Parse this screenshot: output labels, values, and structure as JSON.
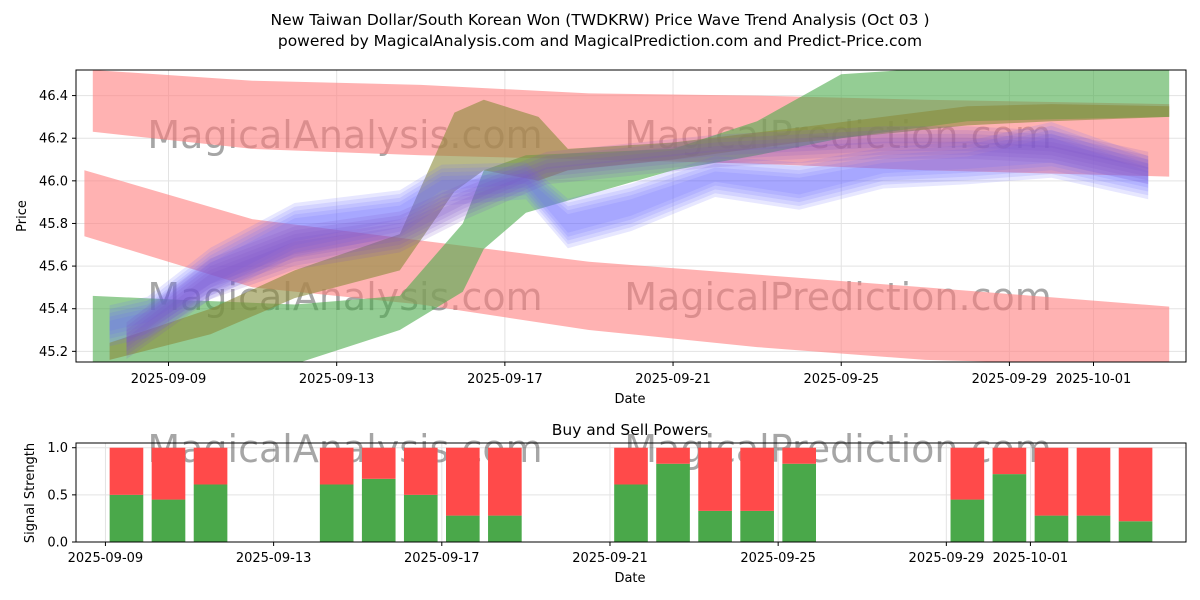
{
  "title_line1": "New Taiwan Dollar/South Korean Won (TWDKRW) Price Wave Trend Analysis (Oct 03 )",
  "title_line2": "powered by MagicalAnalysis.com and MagicalPrediction.com and Predict-Price.com",
  "watermarks": [
    "MagicalAnalysis.com",
    "MagicalPrediction.com"
  ],
  "colors": {
    "red_band": "#ff7f7f",
    "green_band": "#4cab4c",
    "blue_band": "#6a6aff",
    "buy": "#4aa84a",
    "sell": "#ff4a4a"
  },
  "chart_data": [
    {
      "type": "area",
      "name": "price-wave-chart",
      "xlabel": "Date",
      "ylabel": "Price",
      "ylim": [
        45.15,
        46.52
      ],
      "xlim": [
        -1.2,
        25.2
      ],
      "grid": true,
      "x_axis_start_date": "2025-09-08",
      "x_tick_positions": [
        1,
        5,
        9,
        13,
        17,
        21,
        23
      ],
      "x_tick_labels": [
        "2025-09-09",
        "2025-09-13",
        "2025-09-17",
        "2025-09-21",
        "2025-09-25",
        "2025-09-29",
        "2025-10-01"
      ],
      "y_ticks": [
        45.2,
        45.4,
        45.6,
        45.8,
        46.0,
        46.2,
        46.4
      ],
      "bands": [
        {
          "color": "red",
          "x": [
            -0.8,
            3,
            7,
            11,
            15,
            19,
            24.8
          ],
          "upper": [
            46.52,
            46.47,
            46.45,
            46.41,
            46.4,
            46.38,
            46.36
          ],
          "lower": [
            46.23,
            46.15,
            46.12,
            46.1,
            46.08,
            46.05,
            46.02
          ]
        },
        {
          "color": "red",
          "x": [
            -1.0,
            3,
            7,
            11,
            15,
            19,
            24.8
          ],
          "upper": [
            46.05,
            45.82,
            45.72,
            45.62,
            45.56,
            45.5,
            45.41
          ],
          "lower": [
            45.74,
            45.5,
            45.42,
            45.3,
            45.22,
            45.16,
            45.13
          ]
        },
        {
          "color": "green",
          "x": [
            -0.8,
            1.5,
            4,
            6.5,
            8,
            8.5,
            9.5,
            13,
            15,
            17,
            20,
            24.8
          ],
          "upper": [
            45.46,
            45.44,
            45.42,
            45.46,
            45.8,
            46.05,
            46.12,
            46.15,
            46.28,
            46.5,
            46.54,
            46.52
          ],
          "lower": [
            45.15,
            45.12,
            45.14,
            45.3,
            45.48,
            45.68,
            45.85,
            46.05,
            46.12,
            46.2,
            46.28,
            46.3
          ]
        },
        {
          "color": "olive",
          "x": [
            -0.4,
            2,
            4,
            6.5,
            7.8,
            8.5,
            9.8,
            10.5,
            13,
            16,
            18,
            20,
            22,
            24.8
          ],
          "upper": [
            45.24,
            45.4,
            45.58,
            45.75,
            46.32,
            46.38,
            46.3,
            46.15,
            46.18,
            46.25,
            46.3,
            46.35,
            46.36,
            46.35
          ],
          "lower": [
            45.16,
            45.28,
            45.45,
            45.58,
            45.95,
            46.05,
            46.0,
            46.05,
            46.1,
            46.18,
            46.22,
            46.26,
            46.28,
            46.3
          ]
        },
        {
          "color": "blue",
          "x": [
            -0.4,
            0.5,
            2,
            4,
            6.5,
            7.5,
            9.5,
            10.5,
            12,
            14,
            16,
            18,
            20,
            22,
            24.3
          ],
          "upper": [
            45.38,
            45.42,
            45.65,
            45.86,
            45.92,
            46.04,
            46.05,
            45.88,
            45.95,
            46.08,
            46.05,
            46.12,
            46.15,
            46.24,
            46.08
          ],
          "lower": [
            45.26,
            45.3,
            45.48,
            45.68,
            45.78,
            45.92,
            45.95,
            45.72,
            45.8,
            45.96,
            45.9,
            46.0,
            46.02,
            46.05,
            45.95
          ]
        },
        {
          "color": "purple",
          "x": [
            0,
            2,
            4,
            6.5,
            8,
            10,
            12,
            14,
            16,
            18,
            20,
            22,
            24.3
          ],
          "upper": [
            45.3,
            45.6,
            45.75,
            45.82,
            45.95,
            46.1,
            46.14,
            46.18,
            46.2,
            46.22,
            46.22,
            46.2,
            46.1
          ],
          "lower": [
            45.2,
            45.48,
            45.62,
            45.7,
            45.85,
            46.02,
            46.06,
            46.1,
            46.12,
            46.14,
            46.14,
            46.12,
            46.02
          ]
        }
      ]
    },
    {
      "type": "bar",
      "name": "buy-sell-powers-chart",
      "title": "Buy and Sell Powers",
      "xlabel": "Date",
      "ylabel": "Signal Strength",
      "ylim": [
        0,
        1.05
      ],
      "y_ticks": [
        0.0,
        0.5,
        1.0
      ],
      "y_tick_labels": [
        "0.0",
        "0.5",
        "1.0"
      ],
      "xlim": [
        -1.2,
        25.2
      ],
      "x_tick_positions": [
        -0.5,
        3.5,
        7.5,
        11.5,
        15.5,
        19.5,
        21.5
      ],
      "x_tick_labels": [
        "2025-09-09",
        "2025-09-13",
        "2025-09-17",
        "2025-09-21",
        "2025-09-25",
        "2025-09-29",
        "2025-10-01"
      ],
      "series": [
        {
          "name": "buy",
          "x": [
            0,
            1,
            2,
            5,
            6,
            7,
            8,
            9,
            12,
            13,
            14,
            15,
            16,
            20,
            21,
            22,
            23,
            24
          ],
          "values": [
            0.5,
            0.45,
            0.61,
            0.61,
            0.67,
            0.5,
            0.28,
            0.28,
            0.61,
            0.83,
            0.33,
            0.33,
            0.83,
            0.45,
            0.72,
            0.28,
            0.28,
            0.22
          ]
        },
        {
          "name": "sell",
          "x": [
            0,
            1,
            2,
            5,
            6,
            7,
            8,
            9,
            12,
            13,
            14,
            15,
            16,
            20,
            21,
            22,
            23,
            24
          ],
          "values": [
            0.5,
            0.55,
            0.39,
            0.39,
            0.33,
            0.5,
            0.72,
            0.72,
            0.39,
            0.17,
            0.67,
            0.67,
            0.17,
            0.55,
            0.28,
            0.72,
            0.72,
            0.78
          ]
        }
      ]
    }
  ]
}
